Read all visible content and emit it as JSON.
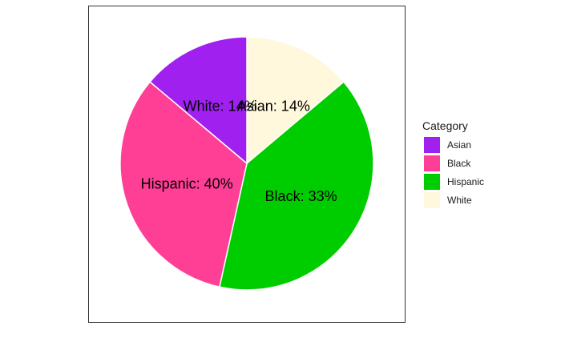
{
  "chart_data": {
    "type": "pie",
    "legend_title": "Category",
    "legend_position": "right",
    "categories": [
      "Asian",
      "Black",
      "Hispanic",
      "White"
    ],
    "colors": [
      "#A020F0",
      "#FF3E96",
      "#00CD00",
      "#FFF8DC"
    ],
    "slices": [
      {
        "category": "White",
        "value": 14,
        "label": "Asian: 14%"
      },
      {
        "category": "Hispanic",
        "value": 40,
        "label": "Black: 33%"
      },
      {
        "category": "Black",
        "value": 33,
        "label": "Hispanic: 40%"
      },
      {
        "category": "Asian",
        "value": 14,
        "label": "White: 14%"
      }
    ]
  }
}
